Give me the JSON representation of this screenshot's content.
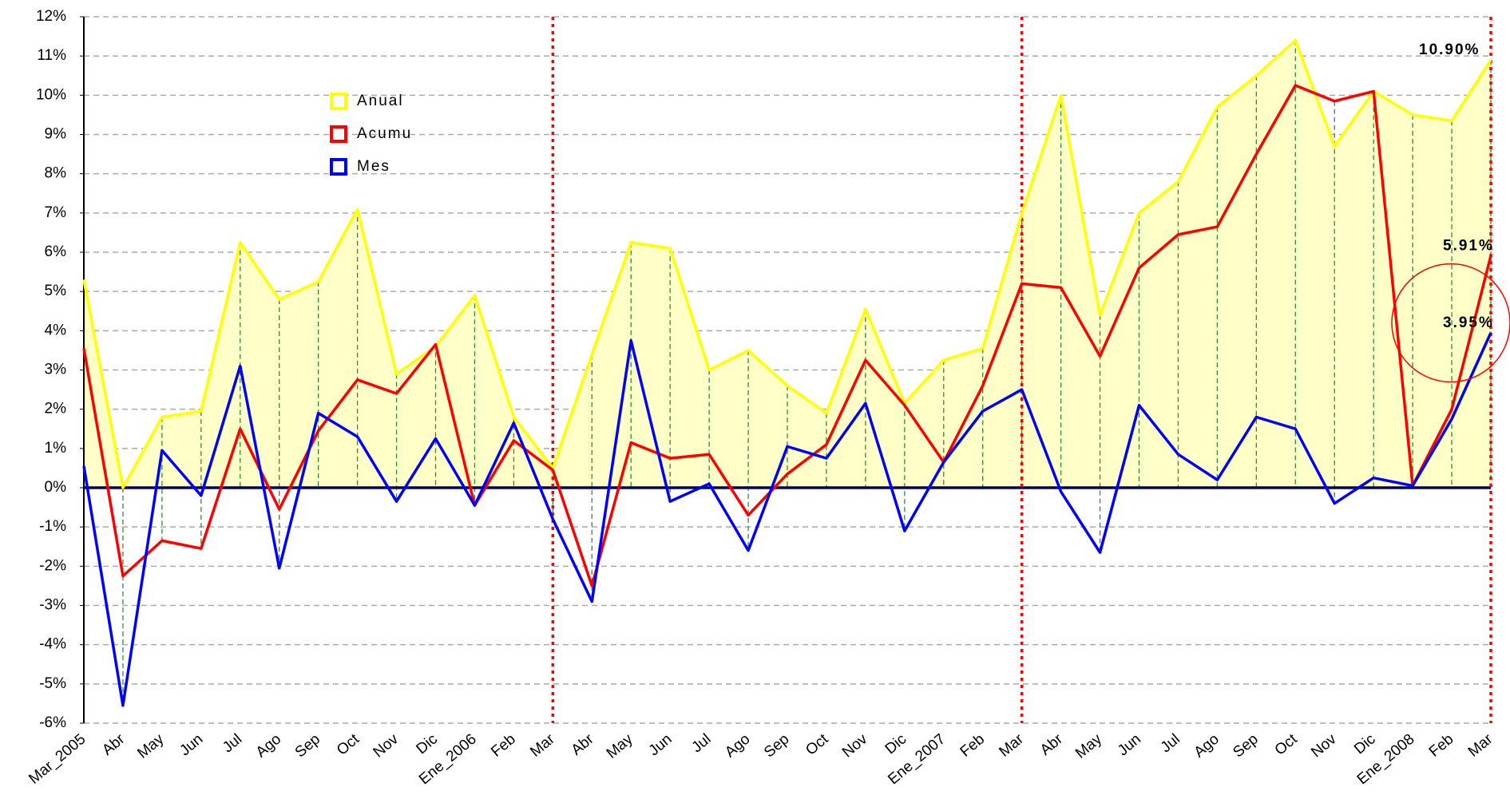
{
  "chart_data": {
    "type": "line",
    "categories": [
      "Mar_2005",
      "Abr",
      "May",
      "Jun",
      "Jul",
      "Ago",
      "Sep",
      "Oct",
      "Nov",
      "Dic",
      "Ene_2006",
      "Feb",
      "Mar",
      "Abr",
      "May",
      "Jun",
      "Jul",
      "Ago",
      "Sep",
      "Oct",
      "Nov",
      "Dic",
      "Ene_2007",
      "Feb",
      "Mar",
      "Abr",
      "May",
      "Jun",
      "Jul",
      "Ago",
      "Sep",
      "Oct",
      "Nov",
      "Dic",
      "Ene_2008",
      "Feb",
      "Mar"
    ],
    "series": [
      {
        "name": "Anual",
        "color": "#ffff00",
        "fill": "#ffffc8",
        "values": [
          5.3,
          0.0,
          1.8,
          1.95,
          6.25,
          4.8,
          5.25,
          7.1,
          2.9,
          3.6,
          4.9,
          1.8,
          0.5,
          3.4,
          6.25,
          6.1,
          3.0,
          3.5,
          2.6,
          1.9,
          4.55,
          2.15,
          3.25,
          3.55,
          7.0,
          10.0,
          4.4,
          7.0,
          7.8,
          9.7,
          10.5,
          11.4,
          8.7,
          10.1,
          9.5,
          9.35,
          10.9
        ],
        "value_labels": [
          null,
          null,
          null,
          null,
          null,
          null,
          null,
          null,
          null,
          null,
          null,
          null,
          null,
          null,
          null,
          null,
          null,
          null,
          null,
          null,
          null,
          null,
          null,
          null,
          null,
          null,
          null,
          null,
          null,
          null,
          null,
          null,
          null,
          null,
          null,
          null,
          "10.90%"
        ]
      },
      {
        "name": "Acumu",
        "color": "#ff0000",
        "values": [
          3.55,
          -2.25,
          -1.35,
          -1.55,
          1.5,
          -0.55,
          1.45,
          2.75,
          2.4,
          3.65,
          -0.45,
          1.2,
          0.45,
          -2.5,
          1.15,
          0.75,
          0.85,
          -0.7,
          0.35,
          1.1,
          3.25,
          2.1,
          0.65,
          2.6,
          5.2,
          5.1,
          3.35,
          5.6,
          6.45,
          6.65,
          8.5,
          10.25,
          9.85,
          10.1,
          0.05,
          2.0,
          5.91
        ],
        "value_labels": [
          null,
          null,
          null,
          null,
          null,
          null,
          null,
          null,
          null,
          null,
          null,
          null,
          null,
          null,
          null,
          null,
          null,
          null,
          null,
          null,
          null,
          null,
          null,
          null,
          null,
          null,
          null,
          null,
          null,
          null,
          null,
          null,
          null,
          null,
          null,
          null,
          "5.91%"
        ]
      },
      {
        "name": "Mes",
        "color": "#0000ff",
        "values": [
          0.55,
          -5.55,
          0.95,
          -0.2,
          3.1,
          -2.05,
          1.9,
          1.3,
          -0.35,
          1.25,
          -0.45,
          1.65,
          -0.8,
          -2.9,
          3.75,
          -0.35,
          0.1,
          -1.6,
          1.05,
          0.75,
          2.15,
          -1.1,
          0.65,
          1.95,
          2.5,
          -0.1,
          -1.65,
          2.1,
          0.85,
          0.2,
          1.8,
          1.5,
          -0.4,
          0.25,
          0.05,
          1.75,
          3.95
        ],
        "value_labels": [
          null,
          null,
          null,
          null,
          null,
          null,
          null,
          null,
          null,
          null,
          null,
          null,
          null,
          null,
          null,
          null,
          null,
          null,
          null,
          null,
          null,
          null,
          null,
          null,
          null,
          null,
          null,
          null,
          null,
          null,
          null,
          null,
          null,
          null,
          null,
          null,
          "3.95%"
        ]
      }
    ],
    "ylim": [
      -6,
      12
    ],
    "yticks": [
      {
        "value": -6,
        "label": "-6%"
      },
      {
        "value": -5,
        "label": "-5%"
      },
      {
        "value": -4,
        "label": "-4%"
      },
      {
        "value": -3,
        "label": "-3%"
      },
      {
        "value": -2,
        "label": "-2%"
      },
      {
        "value": -1,
        "label": "-1%"
      },
      {
        "value": 0,
        "label": "0%"
      },
      {
        "value": 1,
        "label": "1%"
      },
      {
        "value": 2,
        "label": "2%"
      },
      {
        "value": 3,
        "label": "3%"
      },
      {
        "value": 4,
        "label": "4%"
      },
      {
        "value": 5,
        "label": "5%"
      },
      {
        "value": 6,
        "label": "6%"
      },
      {
        "value": 7,
        "label": "7%"
      },
      {
        "value": 8,
        "label": "8%"
      },
      {
        "value": 9,
        "label": "9%"
      },
      {
        "value": 10,
        "label": "10%"
      },
      {
        "value": 11,
        "label": "11%"
      },
      {
        "value": 12,
        "label": "12%"
      }
    ],
    "grid": true,
    "legend": "upper left"
  }
}
